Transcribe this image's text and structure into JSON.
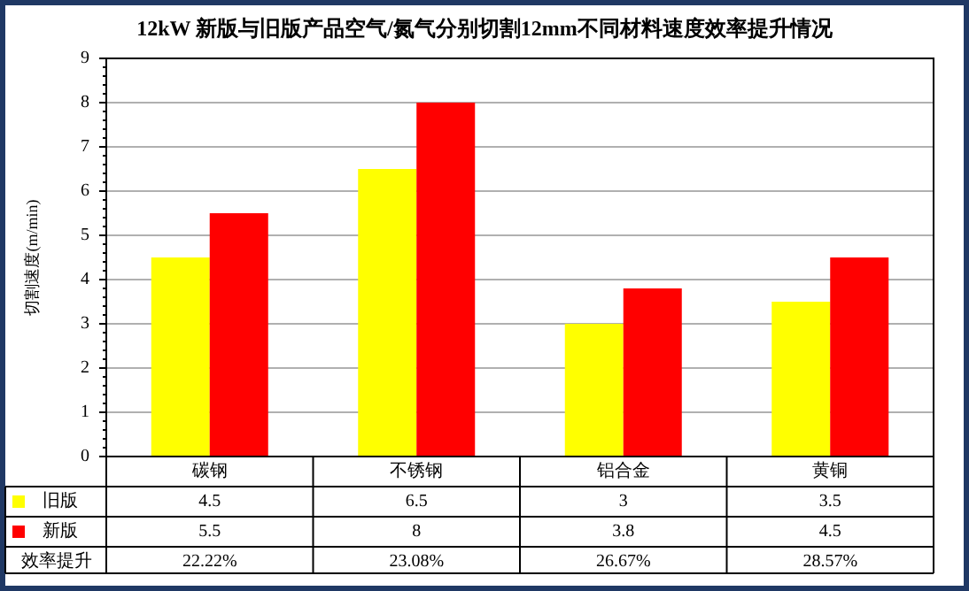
{
  "chart_data": {
    "type": "bar",
    "title": "12kW 新版与旧版产品空气/氮气分别切割12mm不同材料速度效率提升情况",
    "ylabel": "切割速度(m/min)",
    "categories": [
      "碳钢",
      "不锈钢",
      "铝合金",
      "黄铜"
    ],
    "series": [
      {
        "name": "旧版",
        "color": "#ffff00",
        "values": [
          4.5,
          6.5,
          3,
          3.5
        ]
      },
      {
        "name": "新版",
        "color": "#ff0000",
        "values": [
          5.5,
          8,
          3.8,
          4.5
        ]
      }
    ],
    "ylim": [
      0,
      9
    ],
    "yticks": [
      0,
      1,
      2,
      3,
      4,
      5,
      6,
      7,
      8,
      9
    ],
    "grid": "y",
    "legend": "bottom",
    "data_labels": true,
    "annotations": [
      "效率提升",
      "22.22%",
      "23.08%",
      "26.67%",
      "28.57%"
    ]
  }
}
